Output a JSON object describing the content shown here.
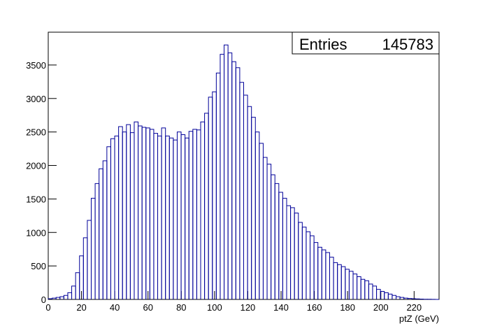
{
  "chart_data": {
    "type": "histogram",
    "x_label": "ptZ (GeV)",
    "color": "#000099",
    "stats": {
      "label": "Entries",
      "value": 145783
    },
    "bins": [
      0,
      2.35,
      4.7,
      7.05,
      9.4,
      11.75,
      14.1,
      16.45,
      18.8,
      21.15,
      23.5,
      25.85,
      28.2,
      30.55,
      32.9,
      35.25,
      37.6,
      39.95,
      42.3,
      44.65,
      47,
      49.35,
      51.7,
      54.05,
      56.4,
      58.75,
      61.1,
      63.45,
      65.8,
      68.15,
      70.5,
      72.85,
      75.2,
      77.55,
      79.9,
      82.25,
      84.6,
      86.95,
      89.3,
      91.65,
      94,
      96.35,
      98.7,
      101.05,
      103.4,
      105.75,
      108.1,
      110.45,
      112.8,
      115.15,
      117.5,
      119.85,
      122.2,
      124.55,
      126.9,
      129.25,
      131.6,
      133.95,
      136.3,
      138.65,
      141,
      143.35,
      145.7,
      148.05,
      150.4,
      152.75,
      155.1,
      157.45,
      159.8,
      162.15,
      164.5,
      166.85,
      169.2,
      171.55,
      173.9,
      176.25,
      178.6,
      180.95,
      183.3,
      185.65,
      188,
      190.35,
      192.7,
      195.05,
      197.4,
      199.75,
      202.1,
      204.45,
      206.8,
      209.15,
      211.5,
      213.85,
      216.2,
      218.55,
      220.9,
      223.25,
      225.6,
      227.95,
      230.3,
      232.65,
      235
    ],
    "values": [
      10,
      20,
      30,
      40,
      60,
      100,
      200,
      400,
      650,
      920,
      1180,
      1510,
      1730,
      1950,
      2070,
      2280,
      2400,
      2440,
      2580,
      2500,
      2610,
      2490,
      2650,
      2590,
      2570,
      2560,
      2540,
      2480,
      2440,
      2560,
      2440,
      2410,
      2380,
      2500,
      2460,
      2410,
      2510,
      2540,
      2530,
      2650,
      2780,
      3020,
      3100,
      3380,
      3660,
      3800,
      3680,
      3550,
      3460,
      3240,
      3050,
      2880,
      2720,
      2500,
      2330,
      2120,
      2020,
      1860,
      1730,
      1600,
      1510,
      1400,
      1370,
      1290,
      1150,
      1080,
      1010,
      950,
      850,
      780,
      740,
      700,
      630,
      550,
      520,
      490,
      450,
      420,
      380,
      340,
      300,
      280,
      230,
      200,
      150,
      120,
      100,
      80,
      60,
      40,
      30,
      20,
      15,
      10,
      8,
      5,
      3,
      2,
      1,
      0
    ],
    "xlim": [
      0,
      235
    ],
    "ylim": [
      0,
      3990
    ],
    "xticks": [
      0,
      20,
      40,
      60,
      80,
      100,
      120,
      140,
      160,
      180,
      200,
      220
    ],
    "yticks": [
      0,
      500,
      1000,
      1500,
      2000,
      2500,
      3000,
      3500
    ]
  }
}
